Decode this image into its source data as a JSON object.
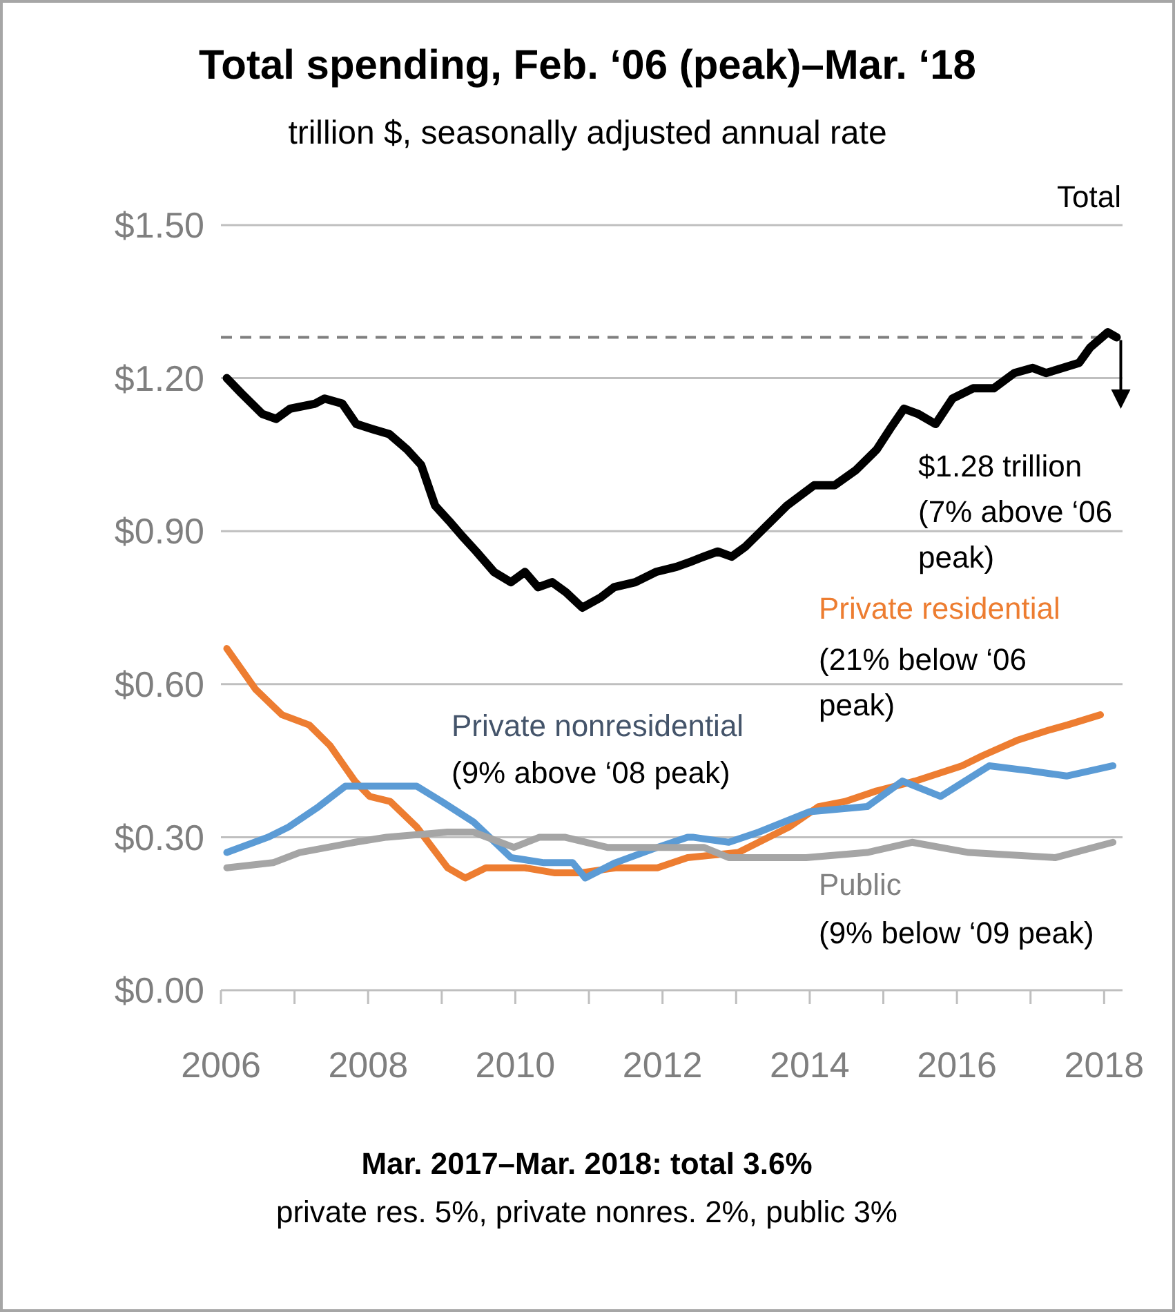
{
  "chart_data": {
    "type": "line",
    "title": "Total spending, Feb. ‘06 (peak)–Mar. ‘18",
    "subtitle": "trillion $, seasonally adjusted annual rate",
    "xlim": [
      2006,
      2018.25
    ],
    "ylim": [
      0,
      1.5
    ],
    "xticks": [
      2006,
      {
        "value": 2007,
        "label": null
      },
      2008,
      {
        "value": 2009,
        "label": null
      },
      2010,
      {
        "value": 2011,
        "label": null
      },
      2012,
      {
        "value": 2013,
        "label": null
      },
      2014,
      {
        "value": 2015,
        "label": null
      },
      2016,
      {
        "value": 2017,
        "label": null
      },
      2018
    ],
    "yticks": [
      {
        "value": 0,
        "label": "$0.00"
      },
      {
        "value": 0.3,
        "label": "$0.30"
      },
      {
        "value": 0.6,
        "label": "$0.60"
      },
      {
        "value": 0.9,
        "label": "$0.90"
      },
      {
        "value": 1.2,
        "label": "$1.20"
      },
      {
        "value": 1.5,
        "label": "$1.50"
      }
    ],
    "grid": "y",
    "ref_lines": [
      {
        "axis": "y",
        "value": 1.28,
        "color": "#7f7f7f",
        "line_style": "dashed"
      }
    ],
    "series": [
      {
        "name": "Total",
        "color": "#000000",
        "x": [
          2006.08,
          2006.28,
          2006.56,
          2006.75,
          2006.94,
          2007.28,
          2007.41,
          2007.65,
          2007.84,
          2008.06,
          2008.29,
          2008.53,
          2008.72,
          2008.91,
          2009.1,
          2009.28,
          2009.47,
          2009.71,
          2009.94,
          2010.13,
          2010.31,
          2010.5,
          2010.69,
          2010.91,
          2011.16,
          2011.34,
          2011.63,
          2011.91,
          2012.19,
          2012.38,
          2012.56,
          2012.75,
          2012.94,
          2013.13,
          2013.41,
          2013.69,
          2014.06,
          2014.34,
          2014.63,
          2014.91,
          2015.09,
          2015.28,
          2015.47,
          2015.71,
          2015.94,
          2016.22,
          2016.5,
          2016.78,
          2017.03,
          2017.21,
          2017.44,
          2017.66,
          2017.81,
          2018.05,
          2018.17
        ],
        "values": [
          1.2,
          1.17,
          1.13,
          1.12,
          1.14,
          1.15,
          1.16,
          1.15,
          1.11,
          1.1,
          1.09,
          1.06,
          1.03,
          0.95,
          0.92,
          0.89,
          0.86,
          0.82,
          0.8,
          0.82,
          0.79,
          0.8,
          0.78,
          0.75,
          0.77,
          0.79,
          0.8,
          0.82,
          0.83,
          0.84,
          0.85,
          0.86,
          0.85,
          0.87,
          0.91,
          0.95,
          0.99,
          0.99,
          1.02,
          1.06,
          1.1,
          1.14,
          1.13,
          1.11,
          1.16,
          1.18,
          1.18,
          1.21,
          1.22,
          1.21,
          1.22,
          1.23,
          1.26,
          1.29,
          1.28
        ]
      },
      {
        "name": "Private residential",
        "color": "#ed7d31",
        "x": [
          2006.08,
          2006.47,
          2006.83,
          2007.2,
          2007.48,
          2007.82,
          2008.02,
          2008.3,
          2008.66,
          2009.08,
          2009.32,
          2009.6,
          2010.13,
          2010.54,
          2010.88,
          2011.36,
          2011.93,
          2012.34,
          2013.03,
          2013.72,
          2014.12,
          2014.48,
          2014.89,
          2015.43,
          2016.07,
          2016.35,
          2016.82,
          2017.25,
          2017.5,
          2017.95
        ],
        "values": [
          0.67,
          0.59,
          0.54,
          0.52,
          0.48,
          0.41,
          0.38,
          0.37,
          0.32,
          0.24,
          0.22,
          0.24,
          0.24,
          0.23,
          0.23,
          0.24,
          0.24,
          0.26,
          0.27,
          0.32,
          0.36,
          0.37,
          0.39,
          0.41,
          0.44,
          0.46,
          0.49,
          0.51,
          0.52,
          0.54
        ]
      },
      {
        "name": "Private nonresidential",
        "color": "#5b9bd5",
        "x": [
          2006.08,
          2006.64,
          2006.92,
          2007.33,
          2007.69,
          2008.1,
          2008.66,
          2009.0,
          2009.43,
          2009.94,
          2010.39,
          2010.78,
          2010.95,
          2011.36,
          2011.93,
          2012.34,
          2012.41,
          2012.9,
          2013.31,
          2014.0,
          2014.78,
          2015.26,
          2015.78,
          2016.44,
          2017.0,
          2017.49,
          2018.12
        ],
        "values": [
          0.27,
          0.3,
          0.32,
          0.36,
          0.4,
          0.4,
          0.4,
          0.37,
          0.33,
          0.26,
          0.25,
          0.25,
          0.22,
          0.25,
          0.28,
          0.3,
          0.3,
          0.29,
          0.31,
          0.35,
          0.36,
          0.41,
          0.38,
          0.44,
          0.43,
          0.42,
          0.44
        ]
      },
      {
        "name": "Public",
        "color": "#a5a5a5",
        "x": [
          2006.08,
          2006.71,
          2007.07,
          2007.82,
          2008.25,
          2009.08,
          2009.43,
          2009.98,
          2010.33,
          2010.67,
          2011.25,
          2011.94,
          2012.56,
          2012.9,
          2013.95,
          2014.78,
          2015.39,
          2016.16,
          2017.34,
          2018.12
        ],
        "values": [
          0.24,
          0.25,
          0.27,
          0.29,
          0.3,
          0.31,
          0.31,
          0.28,
          0.3,
          0.3,
          0.28,
          0.28,
          0.28,
          0.26,
          0.26,
          0.27,
          0.29,
          0.27,
          0.26,
          0.29
        ]
      }
    ],
    "annotations": [
      "$1.28 trillion (7% above ‘06 peak)",
      "(21% below ‘06 peak)",
      "(9% above ‘08 peak)",
      "(9% below ‘09 peak)",
      "Mar. 2017–Mar. 2018: total 3.6%",
      "private res. 5%, private nonres. 2%, public 3%"
    ]
  }
}
